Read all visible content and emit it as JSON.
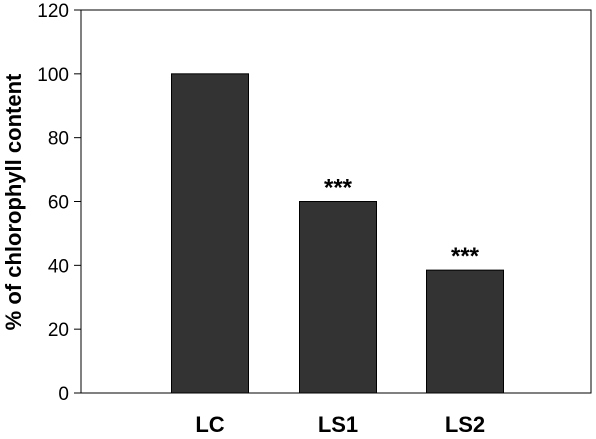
{
  "chart_data": {
    "type": "bar",
    "categories": [
      "LC",
      "LS1",
      "LS2"
    ],
    "values": [
      100,
      60,
      38.5
    ],
    "annotations": [
      "",
      "***",
      "***"
    ],
    "ylabel": "% of chlorophyll content",
    "ylim": [
      0,
      120
    ],
    "yticks": [
      "0",
      "20",
      "40",
      "60",
      "80",
      "100",
      "120"
    ],
    "grid": false,
    "colors": {
      "bar": "#333333",
      "bar_edge": "#000000",
      "axis": "#000000"
    }
  }
}
